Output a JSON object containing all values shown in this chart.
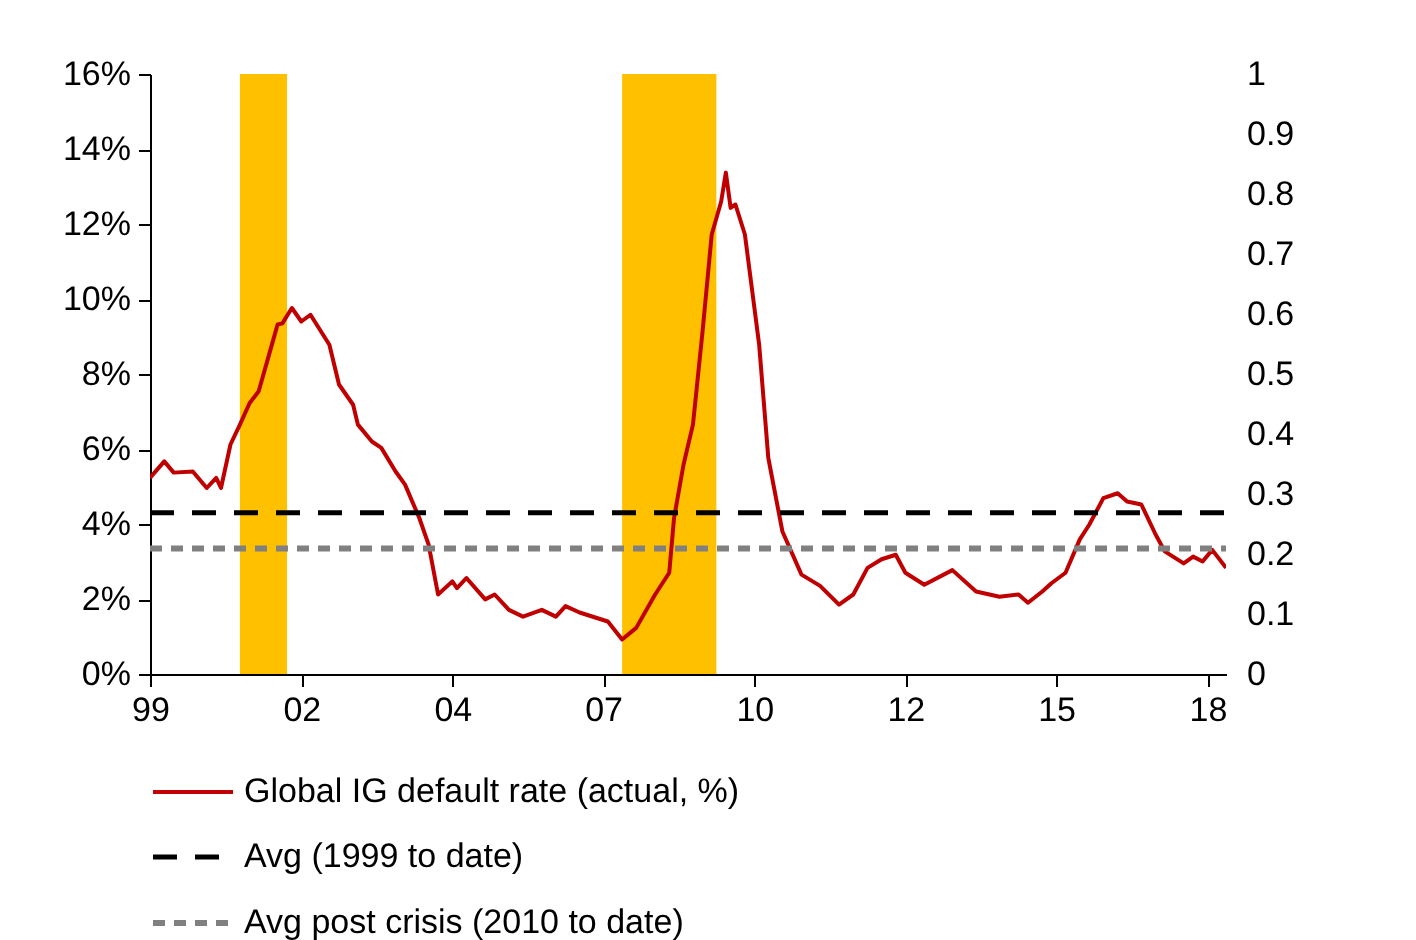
{
  "chart_data": {
    "type": "line",
    "x": [
      "1999-05",
      "1999-08",
      "1999-10",
      "2000-02",
      "2000-05",
      "2000-07",
      "2000-08",
      "2000-10",
      "2000-12",
      "2001-02",
      "2001-04",
      "2001-06",
      "2001-08",
      "2001-09",
      "2001-11",
      "2002-01",
      "2002-03",
      "2002-07",
      "2002-09",
      "2002-12",
      "2003-01",
      "2003-04",
      "2003-06",
      "2003-09",
      "2003-11",
      "2004-02",
      "2004-04",
      "2004-06",
      "2004-09",
      "2004-10",
      "2004-12",
      "2005-04",
      "2005-06",
      "2005-09",
      "2005-12",
      "2006-04",
      "2006-07",
      "2006-09",
      "2006-12",
      "2007-06",
      "2007-09",
      "2007-12",
      "2008-04",
      "2008-07",
      "2008-08",
      "2008-10",
      "2008-12",
      "2009-02",
      "2009-04",
      "2009-06",
      "2009-07",
      "2009-08",
      "2009-09",
      "2009-11",
      "2010-02",
      "2010-04",
      "2010-07",
      "2010-11",
      "2011-03",
      "2011-07",
      "2011-10",
      "2012-01",
      "2012-04",
      "2012-07",
      "2012-09",
      "2013-01",
      "2013-07",
      "2013-12",
      "2014-05",
      "2014-09",
      "2014-11",
      "2015-02",
      "2015-04",
      "2015-07",
      "2015-10",
      "2015-12",
      "2016-03",
      "2016-06",
      "2016-08",
      "2016-11",
      "2017-02",
      "2017-04",
      "2017-08",
      "2017-10",
      "2017-12",
      "2018-02",
      "2018-05"
    ],
    "series": [
      {
        "name": "Global IG default rate (actual, %)",
        "color": "#c00000",
        "values": [
          5.23,
          5.67,
          5.37,
          5.4,
          4.96,
          5.23,
          4.96,
          6.12,
          6.65,
          7.22,
          7.54,
          8.43,
          9.32,
          9.35,
          9.76,
          9.4,
          9.58,
          8.78,
          7.72,
          7.18,
          6.65,
          6.2,
          6.03,
          5.4,
          5.05,
          4.16,
          3.45,
          2.12,
          2.47,
          2.29,
          2.56,
          1.99,
          2.12,
          1.71,
          1.53,
          1.71,
          1.53,
          1.81,
          1.64,
          1.4,
          0.92,
          1.23,
          2.12,
          2.7,
          4.16,
          5.58,
          6.65,
          9.14,
          11.72,
          12.6,
          13.37,
          12.43,
          12.52,
          11.72,
          8.78,
          5.76,
          3.8,
          2.65,
          2.35,
          1.85,
          2.12,
          2.83,
          3.06,
          3.18,
          2.7,
          2.38,
          2.77,
          2.2,
          2.06,
          2.12,
          1.9,
          2.2,
          2.42,
          2.7,
          3.59,
          3.98,
          4.69,
          4.82,
          4.6,
          4.52,
          3.72,
          3.27,
          2.95,
          3.13,
          3.0,
          3.31,
          2.83
        ]
      }
    ],
    "xlim": [
      "1999-05",
      "2018-05"
    ],
    "xticks": [
      {
        "value": "1999-05",
        "label": "99"
      },
      {
        "value": "2002-01",
        "label": "02"
      },
      {
        "value": "2004-09",
        "label": "04"
      },
      {
        "value": "2007-05",
        "label": "07"
      },
      {
        "value": "2010-01",
        "label": "10"
      },
      {
        "value": "2012-09",
        "label": "12"
      },
      {
        "value": "2015-05",
        "label": "15"
      },
      {
        "value": "2018-01",
        "label": "18"
      }
    ],
    "ylim": [
      0,
      16
    ],
    "yticks": [
      {
        "value": 0,
        "label": "0%"
      },
      {
        "value": 2,
        "label": "2%"
      },
      {
        "value": 4,
        "label": "4%"
      },
      {
        "value": 6,
        "label": "6%"
      },
      {
        "value": 8,
        "label": "8%"
      },
      {
        "value": 10,
        "label": "10%"
      },
      {
        "value": 12,
        "label": "12%"
      },
      {
        "value": 14,
        "label": "14%"
      },
      {
        "value": 16,
        "label": "16%"
      }
    ],
    "y2lim": [
      0,
      1
    ],
    "y2ticks": [
      0,
      0.1,
      0.2,
      0.3,
      0.4,
      0.5,
      0.6,
      0.7,
      0.8,
      0.9,
      1
    ],
    "ref_lines": [
      {
        "axis": "y",
        "value": 4.3,
        "label": "Avg (1999 to date)",
        "color": "#000000",
        "line_style": "dashed"
      },
      {
        "axis": "y",
        "value": 3.35,
        "label": "Avg post crisis (2010 to date)",
        "color": "#808080",
        "line_style": "dashed"
      }
    ],
    "bands": [
      {
        "axis": "x",
        "from": "2000-12",
        "to": "2001-10",
        "color": "#ffc000"
      },
      {
        "axis": "x",
        "from": "2007-09",
        "to": "2009-05",
        "color": "#ffc000"
      }
    ],
    "legend": "bottom"
  }
}
